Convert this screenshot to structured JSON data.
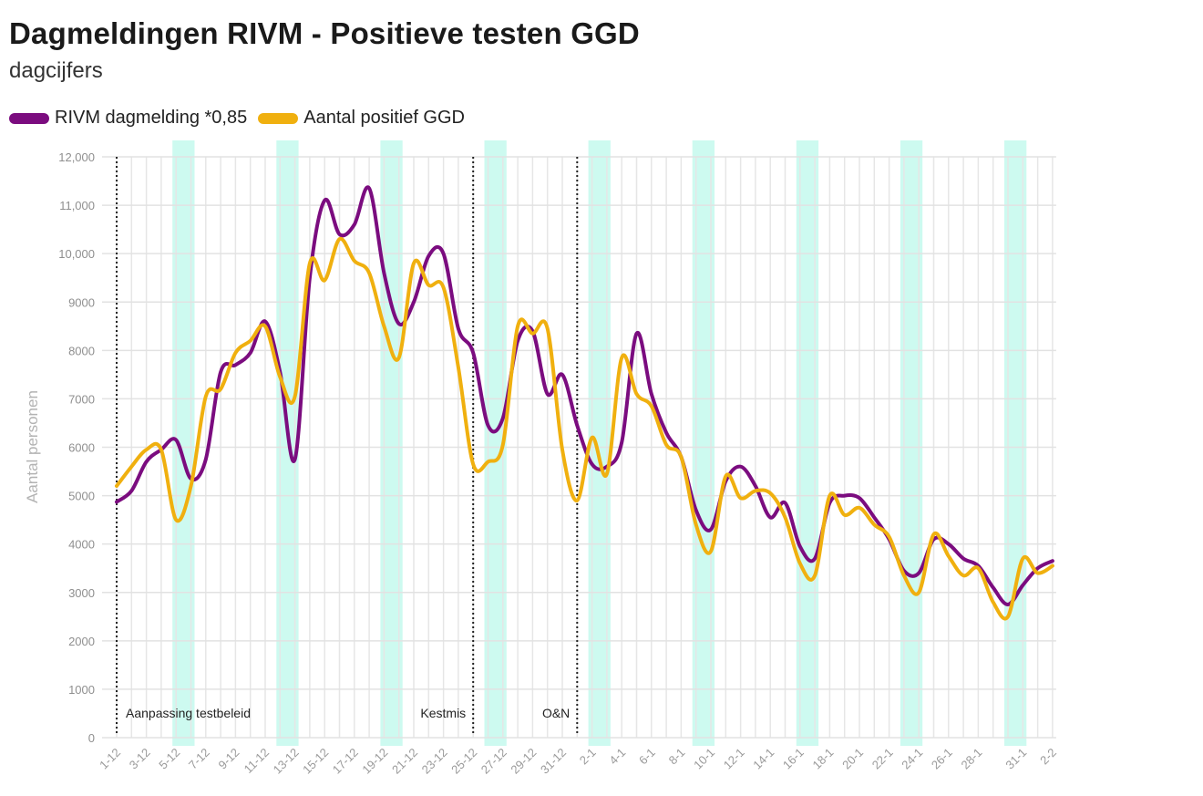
{
  "header": {
    "title": "Dagmeldingen RIVM - Positieve testen GGD",
    "subtitle": "dagcijfers"
  },
  "chart_data": {
    "type": "line",
    "title": "Dagmeldingen RIVM - Positieve testen GGD",
    "subtitle": "dagcijfers",
    "xlabel": "",
    "ylabel": "Aantal personen",
    "ylim": [
      0,
      12000
    ],
    "y_ticks": [
      0,
      1000,
      2000,
      3000,
      4000,
      5000,
      6000,
      7000,
      8000,
      9000,
      10000,
      11000,
      12000
    ],
    "y_tick_labels": [
      "0",
      "1000",
      "2000",
      "3000",
      "4000",
      "5000",
      "6000",
      "7000",
      "8000",
      "9000",
      "10,000",
      "11,000",
      "12,000"
    ],
    "grid": true,
    "legend_placement": "top-left",
    "categories": [
      "1-12",
      "2-12",
      "3-12",
      "4-12",
      "5-12",
      "6-12",
      "7-12",
      "8-12",
      "9-12",
      "10-12",
      "11-12",
      "12-12",
      "13-12",
      "14-12",
      "15-12",
      "16-12",
      "17-12",
      "18-12",
      "19-12",
      "20-12",
      "21-12",
      "22-12",
      "23-12",
      "24-12",
      "25-12",
      "26-12",
      "27-12",
      "28-12",
      "29-12",
      "30-12",
      "31-12",
      "1-1",
      "2-1",
      "3-1",
      "4-1",
      "5-1",
      "6-1",
      "7-1",
      "8-1",
      "9-1",
      "10-1",
      "11-1",
      "12-1",
      "13-1",
      "14-1",
      "15-1",
      "16-1",
      "17-1",
      "18-1",
      "19-1",
      "20-1",
      "21-1",
      "22-1",
      "23-1",
      "24-1",
      "25-1",
      "26-1",
      "27-1",
      "28-1",
      "29-1",
      "30-1",
      "31-1",
      "1-2",
      "2-2"
    ],
    "x_tick_labels": [
      "1-12",
      "3-12",
      "5-12",
      "7-12",
      "9-12",
      "11-12",
      "13-12",
      "15-12",
      "17-12",
      "19-12",
      "21-12",
      "23-12",
      "25-12",
      "27-12",
      "29-12",
      "31-12",
      "2-1",
      "4-1",
      "6-1",
      "8-1",
      "10-1",
      "12-1",
      "14-1",
      "16-1",
      "18-1",
      "20-1",
      "22-1",
      "24-1",
      "26-1",
      "28-1",
      "31-1",
      "2-2"
    ],
    "series": [
      {
        "name": "RIVM dagmelding *0,85",
        "color": "#7b0c7f",
        "values": [
          4870,
          5100,
          5700,
          5950,
          6150,
          5350,
          5750,
          7550,
          7700,
          7950,
          8600,
          7550,
          5750,
          9500,
          11100,
          10400,
          10600,
          11350,
          9600,
          8550,
          9000,
          9950,
          10000,
          8450,
          7950,
          6450,
          6600,
          8200,
          8400,
          7100,
          7500,
          6450,
          5650,
          5600,
          6100,
          8350,
          7100,
          6300,
          5800,
          4700,
          4300,
          5300,
          5600,
          5200,
          4550,
          4850,
          3950,
          3700,
          4850,
          5000,
          4950,
          4550,
          4100,
          3450,
          3400,
          4100,
          4000,
          3700,
          3550,
          3100,
          2750,
          3150,
          3500,
          3650
        ]
      },
      {
        "name": "Aantal positief GGD",
        "color": "#f0b00f",
        "values": [
          5200,
          5600,
          5950,
          5950,
          4500,
          5200,
          7050,
          7200,
          7950,
          8200,
          8500,
          7450,
          7050,
          9800,
          9450,
          10300,
          9850,
          9600,
          8500,
          7850,
          9800,
          9350,
          9300,
          7650,
          5650,
          5700,
          6050,
          8500,
          8350,
          8450,
          5950,
          4900,
          6200,
          5450,
          7850,
          7100,
          6850,
          6050,
          5800,
          4400,
          3850,
          5400,
          4950,
          5100,
          5050,
          4550,
          3600,
          3350,
          5000,
          4600,
          4750,
          4400,
          4150,
          3350,
          3000,
          4200,
          3750,
          3350,
          3500,
          2800,
          2500,
          3700,
          3400,
          3550
        ]
      }
    ],
    "highlight_bands": [
      {
        "from": "5-12",
        "to": "6-12"
      },
      {
        "from": "12-12",
        "to": "13-12"
      },
      {
        "from": "19-12",
        "to": "20-12"
      },
      {
        "from": "26-12",
        "to": "27-12"
      },
      {
        "from": "2-1",
        "to": "3-1"
      },
      {
        "from": "9-1",
        "to": "10-1"
      },
      {
        "from": "16-1",
        "to": "17-1"
      },
      {
        "from": "23-1",
        "to": "24-1"
      },
      {
        "from": "30-1",
        "to": "31-1"
      }
    ],
    "band_color": "#cdfaf0",
    "annotations": [
      {
        "at": "1-12",
        "text": "Aanpassing testbeleid",
        "side": "right"
      },
      {
        "at": "25-12",
        "text": "Kestmis",
        "side": "left"
      },
      {
        "at": "1-1",
        "text": "O&N",
        "side": "left"
      }
    ]
  }
}
